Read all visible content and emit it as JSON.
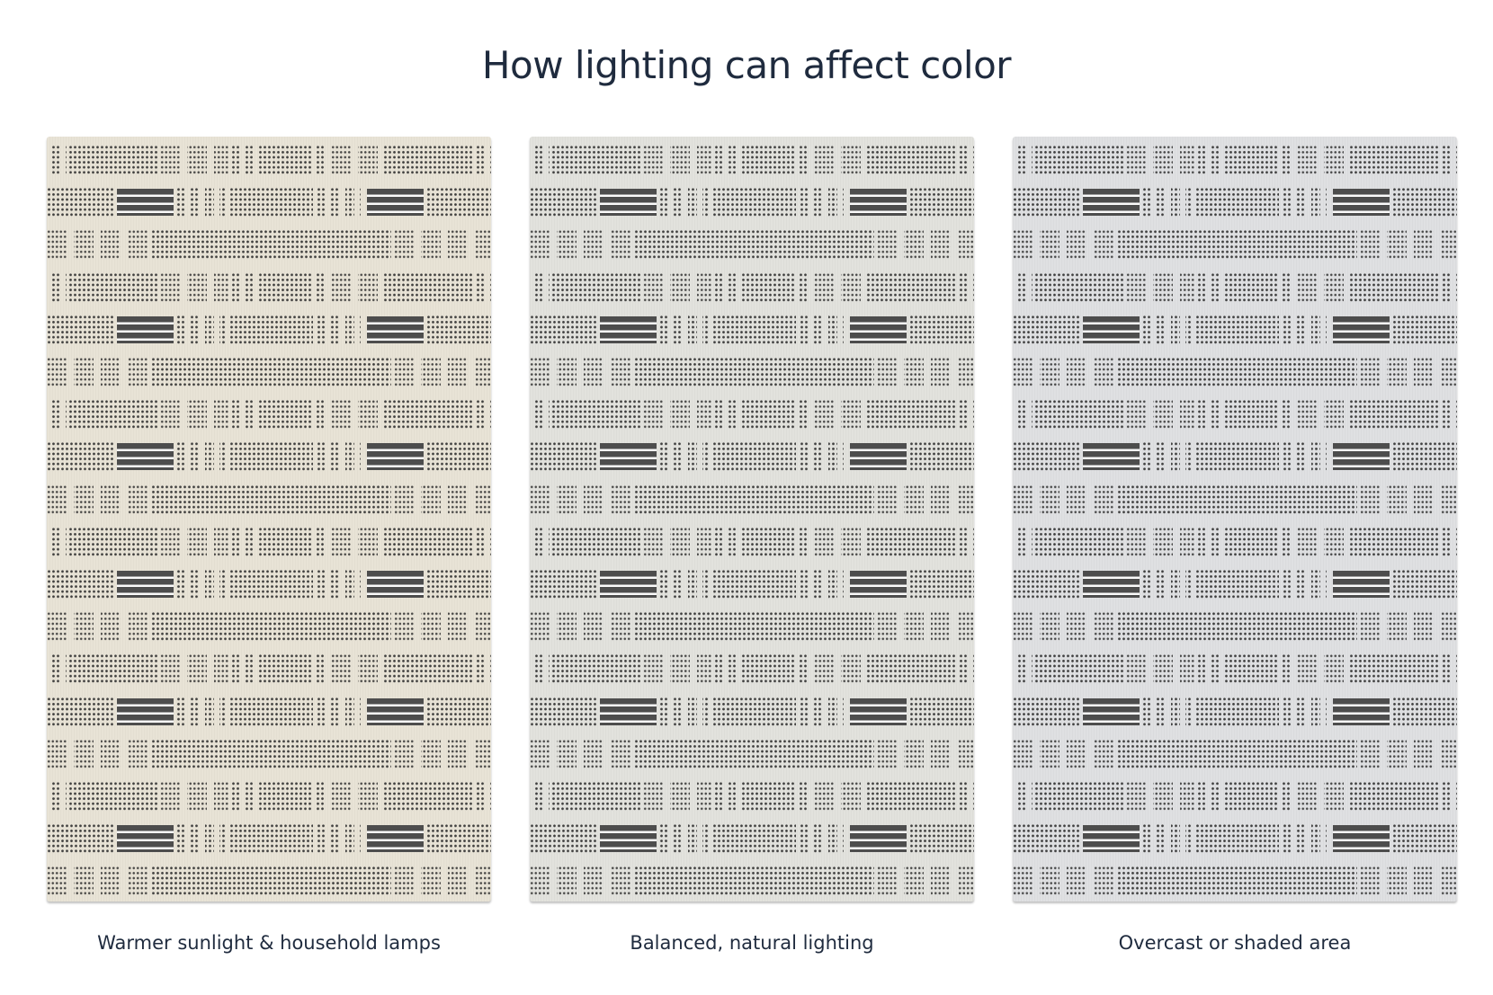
{
  "title": "How lighting can affect color",
  "panels": [
    {
      "caption": "Warmer sunlight & household lamps",
      "rug_color": "#e8e3d6"
    },
    {
      "caption": "Balanced, natural lighting",
      "rug_color": "#e2e2dd"
    },
    {
      "caption": "Overcast or shaded area",
      "rug_color": "#dfe0e2"
    }
  ],
  "pattern_color": "#3a3a3a"
}
